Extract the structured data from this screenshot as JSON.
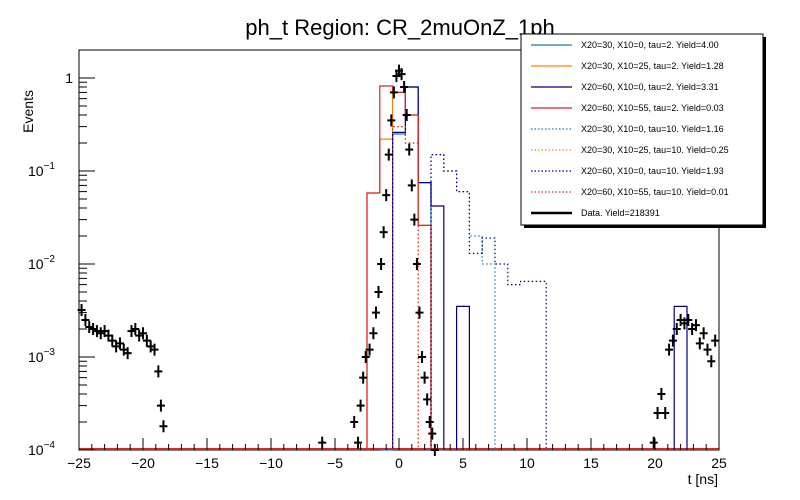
{
  "chart_data": {
    "type": "line",
    "title": "ph_t Region: CR_2muOnZ_1ph",
    "xlabel": "t [ns]",
    "ylabel": "Events",
    "xlim": [
      -25,
      25
    ],
    "ylim": [
      0.0001,
      2
    ],
    "yscale": "log",
    "x_ticks": [
      -25,
      -20,
      -15,
      -10,
      -5,
      0,
      5,
      10,
      15,
      20,
      25
    ],
    "y_ticks": [
      {
        "value": 0.0001,
        "base": "10",
        "exp": "−4"
      },
      {
        "value": 0.001,
        "base": "10",
        "exp": "−3"
      },
      {
        "value": 0.01,
        "base": "10",
        "exp": "−2"
      },
      {
        "value": 0.1,
        "base": "10",
        "exp": "−1"
      },
      {
        "value": 1,
        "base": "1",
        "exp": ""
      }
    ],
    "legend_position": "top-right",
    "series": [
      {
        "name": "X20=30, X10=0, tau=2. Yield=4.00",
        "color": "#1f77b4",
        "dash": "solid",
        "bins": [
          [
            -1.5,
            -0.5,
            0.0001
          ],
          [
            -0.5,
            0.5,
            0.25
          ],
          [
            0.5,
            1.5,
            0.8
          ],
          [
            1.5,
            2.5,
            0.075
          ],
          [
            2.5,
            3.5,
            0.0001
          ]
        ]
      },
      {
        "name": "X20=30, X10=25, tau=2. Yield=1.28",
        "color": "#ff7f0e",
        "dash": "solid",
        "bins": [
          [
            -2.5,
            -1.5,
            0.058
          ],
          [
            -1.5,
            -0.5,
            0.22
          ],
          [
            -0.5,
            0.5,
            0.7
          ],
          [
            0.5,
            1.5,
            0.4
          ],
          [
            1.5,
            2.5,
            0.026
          ]
        ]
      },
      {
        "name": "X20=60, X10=0, tau=2. Yield=3.31",
        "color": "#00007f",
        "dash": "solid",
        "bins": [
          [
            -0.5,
            0.5,
            0.26
          ],
          [
            0.5,
            1.5,
            0.8
          ],
          [
            1.5,
            2.5,
            0.075
          ],
          [
            2.5,
            3.5,
            0.042
          ],
          [
            4.5,
            5.5,
            0.0035
          ],
          [
            21.5,
            22.5,
            0.0035
          ]
        ]
      },
      {
        "name": "X20=60, X10=55, tau=2. Yield=0.03",
        "color": "#d62728",
        "dash": "solid",
        "bins": [
          [
            -2.5,
            -1.5,
            0.058
          ],
          [
            -1.5,
            -0.5,
            0.82
          ],
          [
            -0.5,
            0.5,
            0.7
          ],
          [
            0.5,
            1.5,
            0.4
          ],
          [
            1.5,
            2.5,
            0.026
          ]
        ]
      },
      {
        "name": "X20=30, X10=0, tau=10. Yield=1.16",
        "color": "#1f77b4",
        "dash": "dot",
        "bins": [
          [
            2.5,
            3.5,
            0.15
          ],
          [
            3.5,
            4.5,
            0.1
          ],
          [
            4.5,
            5.5,
            0.06
          ],
          [
            5.5,
            6.5,
            0.02
          ],
          [
            6.5,
            7.5,
            0.01
          ]
        ]
      },
      {
        "name": "X20=30, X10=25, tau=10. Yield=0.25",
        "color": "#ff7f0e",
        "dash": "dot",
        "bins": [
          [
            -0.5,
            0.5,
            0.3
          ],
          [
            0.5,
            1.5,
            0.2
          ]
        ]
      },
      {
        "name": "X20=60, X10=0, tau=10. Yield=1.93",
        "color": "#00007f",
        "dash": "dot",
        "bins": [
          [
            2.5,
            3.5,
            0.15
          ],
          [
            3.5,
            4.5,
            0.1
          ],
          [
            4.5,
            5.5,
            0.06
          ],
          [
            5.5,
            6.5,
            0.013
          ],
          [
            6.5,
            7.5,
            0.019
          ],
          [
            7.5,
            8.5,
            0.01
          ],
          [
            8.5,
            9.5,
            0.006
          ],
          [
            9.5,
            10.5,
            0.0065
          ],
          [
            10.5,
            11.5,
            0.0065
          ]
        ]
      },
      {
        "name": "X20=60, X10=55, tau=10. Yield=0.01",
        "color": "#d62728",
        "dash": "dot",
        "bins": [
          [
            -0.5,
            0.5,
            0.3
          ],
          [
            0.5,
            1.5,
            0.2
          ]
        ]
      },
      {
        "name": "Data. Yield=218391",
        "color": "#000000",
        "dash": "solid",
        "points": [
          [
            -24.8,
            0.0032
          ],
          [
            -24.5,
            0.0025
          ],
          [
            -24.2,
            0.0021
          ],
          [
            -23.9,
            0.002
          ],
          [
            -23.6,
            0.0019
          ],
          [
            -23.3,
            0.0018
          ],
          [
            -23.0,
            0.0019
          ],
          [
            -22.7,
            0.0017
          ],
          [
            -22.4,
            0.0015
          ],
          [
            -22.1,
            0.0013
          ],
          [
            -21.8,
            0.0014
          ],
          [
            -21.5,
            0.0012
          ],
          [
            -21.2,
            0.0011
          ],
          [
            -20.9,
            0.0019
          ],
          [
            -20.6,
            0.002
          ],
          [
            -20.3,
            0.0017
          ],
          [
            -20.0,
            0.0018
          ],
          [
            -19.7,
            0.0015
          ],
          [
            -19.4,
            0.0013
          ],
          [
            -19.1,
            0.0012
          ],
          [
            -18.8,
            0.0007
          ],
          [
            -18.6,
            0.0003
          ],
          [
            -18.4,
            0.00018
          ],
          [
            -6.0,
            0.00012
          ],
          [
            -3.5,
            0.0002
          ],
          [
            -3.2,
            0.00012
          ],
          [
            -3.0,
            0.0003
          ],
          [
            -2.8,
            0.0006
          ],
          [
            -2.6,
            0.001
          ],
          [
            -2.3,
            0.0012
          ],
          [
            -2.0,
            0.0018
          ],
          [
            -1.8,
            0.003
          ],
          [
            -1.6,
            0.005
          ],
          [
            -1.4,
            0.01
          ],
          [
            -1.2,
            0.022
          ],
          [
            -1.0,
            0.055
          ],
          [
            -0.8,
            0.15
          ],
          [
            -0.6,
            0.35
          ],
          [
            -0.4,
            0.7
          ],
          [
            -0.2,
            1.05
          ],
          [
            0.0,
            1.2
          ],
          [
            0.2,
            1.1
          ],
          [
            0.4,
            0.8
          ],
          [
            0.6,
            0.4
          ],
          [
            0.8,
            0.17
          ],
          [
            1.0,
            0.07
          ],
          [
            1.2,
            0.03
          ],
          [
            1.4,
            0.01
          ],
          [
            1.6,
            0.003
          ],
          [
            1.8,
            0.001
          ],
          [
            2.0,
            0.0006
          ],
          [
            2.2,
            0.00035
          ],
          [
            2.4,
            0.0002
          ],
          [
            2.6,
            0.00015
          ],
          [
            2.8,
            0.0001
          ],
          [
            19.9,
            0.00012
          ],
          [
            20.2,
            0.00025
          ],
          [
            20.5,
            0.0004
          ],
          [
            20.8,
            0.00025
          ],
          [
            21.1,
            0.0012
          ],
          [
            21.4,
            0.0015
          ],
          [
            21.7,
            0.002
          ],
          [
            22.0,
            0.0025
          ],
          [
            22.3,
            0.0023
          ],
          [
            22.6,
            0.0025
          ],
          [
            22.9,
            0.002
          ],
          [
            23.2,
            0.0022
          ],
          [
            23.5,
            0.0014
          ],
          [
            23.8,
            0.0018
          ],
          [
            24.1,
            0.0012
          ],
          [
            24.4,
            0.0009
          ],
          [
            24.7,
            0.0015
          ]
        ]
      }
    ]
  }
}
